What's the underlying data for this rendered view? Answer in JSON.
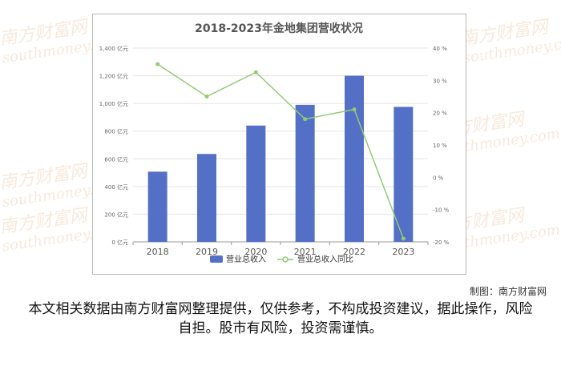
{
  "watermark_text": "南方财富网",
  "watermark_sub": "southmoney.com",
  "credit": "制图：南方财富网",
  "disclaimer": "本文相关数据由南方财富网整理提供，仅供参考，不构成投资建议，据此操作，风险自担。股市有风险，投资需谨慎。",
  "chart_data": {
    "type": "bar+line",
    "title": "2018-2023年金地集团营收状况",
    "categories": [
      "2018",
      "2019",
      "2020",
      "2021",
      "2022",
      "2023"
    ],
    "series": [
      {
        "name": "营业总收入",
        "type": "bar",
        "axis": "left",
        "color": "#5470c6",
        "values": [
          507,
          635,
          840,
          990,
          1200,
          975
        ]
      },
      {
        "name": "营业总收入同比",
        "type": "line",
        "axis": "right",
        "color": "#91cc75",
        "values": [
          35,
          25,
          32.5,
          18,
          21,
          -19
        ]
      }
    ],
    "y_left": {
      "ticks": [
        0,
        200,
        400,
        600,
        800,
        1000,
        1200,
        1400
      ],
      "unit": "亿元",
      "tick_labels": [
        "0 亿元",
        "200 亿元",
        "400 亿元",
        "600 亿元",
        "800 亿元",
        "1,000 亿元",
        "1,200 亿元",
        "1,400 亿元"
      ],
      "ylim": [
        0,
        1400
      ]
    },
    "y_right": {
      "ticks": [
        -20,
        -10,
        0,
        10,
        20,
        30,
        40
      ],
      "tick_labels": [
        "-20 %",
        "-10 %",
        "0 %",
        "10 %",
        "20 %",
        "30 %",
        "40 %"
      ],
      "ylim": [
        -20,
        40
      ]
    },
    "grid": true,
    "legend": "bottom-center"
  }
}
